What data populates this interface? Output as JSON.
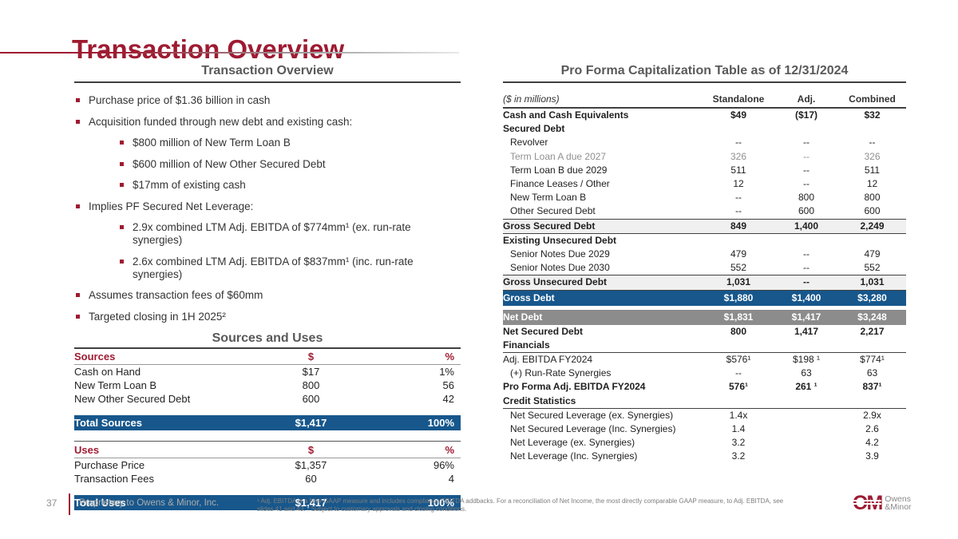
{
  "slide": {
    "title": "Transaction Overview",
    "page_number": "37",
    "footer_text": "Proprietary to Owens & Minor, Inc.",
    "footnote_line1": "¹ Adj. EBITDA is a Non-GAAP measure and includes compliance EBITDA addbacks. For a reconciliation of Net Income, the most directly comparable GAAP measure, to Adj. EBITDA,  see",
    "footnote_line2": "slides 41 and 43. ² Subject to customary approvals and closing conditions.",
    "logo": {
      "mark": "OM",
      "name_line1": "Owens",
      "name_line2": "&Minor"
    }
  },
  "colors": {
    "maroon": "#9E1B32",
    "banner_blue": "#17578C",
    "banner_gray": "#8C8C8C",
    "subtotal_bg": "#F0F0F0"
  },
  "left": {
    "section_title": "Transaction Overview",
    "bullets": [
      {
        "level": 1,
        "text": "Purchase price of $1.36 billion in cash"
      },
      {
        "level": 1,
        "text": "Acquisition funded through new debt and existing cash:"
      },
      {
        "level": 2,
        "text": "$800 million of New Term Loan B"
      },
      {
        "level": 2,
        "text": "$600 million of New Other Secured Debt"
      },
      {
        "level": 2,
        "text": "$17mm of existing cash"
      },
      {
        "level": 1,
        "text": "Implies PF Secured Net Leverage:"
      },
      {
        "level": 2,
        "text": "2.9x combined LTM Adj. EBITDA of $774mm¹ (ex. run-rate synergies)"
      },
      {
        "level": 2,
        "text": "2.6x combined LTM Adj. EBITDA of $837mm¹ (inc. run-rate synergies)"
      },
      {
        "level": 1,
        "text": "Assumes transaction fees of $60mm"
      },
      {
        "level": 1,
        "text": "Targeted closing in 1H 2025²"
      }
    ],
    "sources_uses_title": "Sources and Uses",
    "sources": {
      "headers": [
        "Sources",
        "$",
        "%"
      ],
      "rows": [
        [
          "Cash on Hand",
          "$17",
          "1%"
        ],
        [
          "New Term Loan B",
          "800",
          "56"
        ],
        [
          "New Other Secured Debt",
          "600",
          "42"
        ]
      ],
      "total": [
        "Total Sources",
        "$1,417",
        "100%"
      ]
    },
    "uses": {
      "headers": [
        "Uses",
        "$",
        "%"
      ],
      "rows": [
        [
          "Purchase Price",
          "$1,357",
          "96%"
        ],
        [
          "Transaction Fees",
          "60",
          "4"
        ]
      ],
      "total": [
        "Total Uses",
        "$1,417",
        "100%"
      ]
    }
  },
  "right": {
    "section_title": "Pro Forma Capitalization Table as of 12/31/2024",
    "unit_label": "($ in millions)",
    "columns": [
      "Standalone",
      "Adj.",
      "Combined"
    ],
    "rows": [
      {
        "style": "bold",
        "label": "Cash and Cash Equivalents",
        "standalone": "$49",
        "adj": "($17)",
        "combined": "$32"
      },
      {
        "style": "section",
        "label": "Secured Debt",
        "standalone": "",
        "adj": "",
        "combined": ""
      },
      {
        "style": "item",
        "label": "Revolver",
        "standalone": "--",
        "adj": "--",
        "combined": "--"
      },
      {
        "style": "item muted",
        "label": "Term Loan A due 2027",
        "standalone": "326",
        "adj": "--",
        "combined": "326"
      },
      {
        "style": "item",
        "label": "Term Loan B due 2029",
        "standalone": "511",
        "adj": "--",
        "combined": "511"
      },
      {
        "style": "item",
        "label": "Finance Leases / Other",
        "standalone": "12",
        "adj": "--",
        "combined": "12"
      },
      {
        "style": "item",
        "label": "New Term Loan B",
        "standalone": "--",
        "adj": "800",
        "combined": "800"
      },
      {
        "style": "item",
        "label": "Other Secured Debt",
        "standalone": "--",
        "adj": "600",
        "combined": "600"
      },
      {
        "style": "subtotal",
        "label": "Gross Secured Debt",
        "standalone": "849",
        "adj": "1,400",
        "combined": "2,249"
      },
      {
        "style": "section",
        "label": "Existing Unsecured Debt",
        "standalone": "",
        "adj": "",
        "combined": ""
      },
      {
        "style": "item",
        "label": "Senior Notes Due 2029",
        "standalone": "479",
        "adj": "--",
        "combined": "479"
      },
      {
        "style": "item",
        "label": "Senior Notes Due 2030",
        "standalone": "552",
        "adj": "--",
        "combined": "552"
      },
      {
        "style": "subtotal",
        "label": "Gross Unsecured Debt",
        "standalone": "1,031",
        "adj": "--",
        "combined": "1,031"
      },
      {
        "style": "banner-blue",
        "label": "Gross Debt",
        "standalone": "$1,880",
        "adj": "$1,400",
        "combined": "$3,280"
      },
      {
        "style": "banner-gray",
        "label": "Net Debt",
        "standalone": "$1,831",
        "adj": "$1,417",
        "combined": "$3,248"
      },
      {
        "style": "bold",
        "label": "Net Secured Debt",
        "standalone": "800",
        "adj": "1,417",
        "combined": "2,217"
      },
      {
        "style": "section-rule",
        "label": "Financials",
        "standalone": "",
        "adj": "",
        "combined": ""
      },
      {
        "style": "plain",
        "label": "Adj. EBITDA FY2024",
        "standalone": "$576¹",
        "adj": "$198 ¹",
        "combined": "$774¹"
      },
      {
        "style": "item",
        "label": "(+) Run-Rate Synergies",
        "standalone": "--",
        "adj": "63",
        "combined": "63"
      },
      {
        "style": "bold",
        "label": "Pro Forma Adj. EBITDA FY2024",
        "standalone": "576¹",
        "adj": "261 ¹",
        "combined": "837¹"
      },
      {
        "style": "section-rule",
        "label": "Credit Statistics",
        "standalone": "",
        "adj": "",
        "combined": ""
      },
      {
        "style": "item",
        "label": "Net Secured Leverage (ex. Synergies)",
        "standalone": "1.4x",
        "adj": "",
        "combined": "2.9x"
      },
      {
        "style": "item",
        "label": "Net Secured Leverage (Inc. Synergies)",
        "standalone": "1.4",
        "adj": "",
        "combined": "2.6"
      },
      {
        "style": "item",
        "label": "Net Leverage (ex. Synergies)",
        "standalone": "3.2",
        "adj": "",
        "combined": "4.2"
      },
      {
        "style": "item",
        "label": "Net Leverage (Inc. Synergies)",
        "standalone": "3.2",
        "adj": "",
        "combined": "3.9"
      }
    ]
  }
}
